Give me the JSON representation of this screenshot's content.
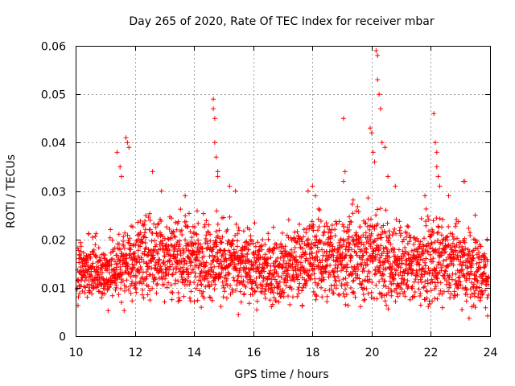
{
  "chart_data": {
    "type": "scatter",
    "title": "Day 265 of 2020, Rate Of TEC Index for receiver mbar",
    "xlabel": "GPS time / hours",
    "ylabel": "ROTI / TECUs",
    "xlim": [
      10,
      24
    ],
    "ylim": [
      0,
      0.06
    ],
    "grid": true,
    "x_ticks": [
      10,
      12,
      14,
      16,
      18,
      20,
      22,
      24
    ],
    "x_tick_labels": [
      "10",
      "12",
      "14",
      "16",
      "18",
      "20",
      "22",
      "24"
    ],
    "y_ticks": [
      0,
      0.01,
      0.02,
      0.03,
      0.04,
      0.05,
      0.06
    ],
    "y_tick_labels": [
      "0",
      "0.01",
      "0.02",
      "0.03",
      "0.04",
      "0.05",
      "0.06"
    ],
    "marker": "+",
    "color": "#ff0000",
    "sampling": "approximate; dense scatter summarised as hour-binned baseline plus visible spikes",
    "baseline": {
      "hours": [
        10,
        11,
        12,
        13,
        14,
        15,
        16,
        17,
        18,
        19,
        20,
        21,
        22,
        23,
        24
      ],
      "low": [
        0.006,
        0.005,
        0.006,
        0.006,
        0.006,
        0.005,
        0.005,
        0.005,
        0.006,
        0.005,
        0.004,
        0.004,
        0.005,
        0.004,
        0.004
      ],
      "high": [
        0.022,
        0.021,
        0.026,
        0.028,
        0.027,
        0.026,
        0.023,
        0.023,
        0.027,
        0.028,
        0.03,
        0.026,
        0.026,
        0.025,
        0.021
      ]
    },
    "spikes": [
      {
        "x": 11.4,
        "y": 0.038
      },
      {
        "x": 11.5,
        "y": 0.035
      },
      {
        "x": 11.55,
        "y": 0.033
      },
      {
        "x": 11.7,
        "y": 0.041
      },
      {
        "x": 11.75,
        "y": 0.04
      },
      {
        "x": 11.8,
        "y": 0.039
      },
      {
        "x": 12.6,
        "y": 0.034
      },
      {
        "x": 12.9,
        "y": 0.03
      },
      {
        "x": 13.7,
        "y": 0.029
      },
      {
        "x": 14.65,
        "y": 0.049
      },
      {
        "x": 14.65,
        "y": 0.047
      },
      {
        "x": 14.7,
        "y": 0.045
      },
      {
        "x": 14.7,
        "y": 0.04
      },
      {
        "x": 14.75,
        "y": 0.037
      },
      {
        "x": 14.8,
        "y": 0.034
      },
      {
        "x": 14.8,
        "y": 0.033
      },
      {
        "x": 15.2,
        "y": 0.031
      },
      {
        "x": 15.4,
        "y": 0.03
      },
      {
        "x": 17.85,
        "y": 0.03
      },
      {
        "x": 18.0,
        "y": 0.031
      },
      {
        "x": 18.1,
        "y": 0.029
      },
      {
        "x": 19.05,
        "y": 0.045
      },
      {
        "x": 19.1,
        "y": 0.034
      },
      {
        "x": 19.05,
        "y": 0.032
      },
      {
        "x": 19.95,
        "y": 0.043
      },
      {
        "x": 20.0,
        "y": 0.042
      },
      {
        "x": 20.05,
        "y": 0.038
      },
      {
        "x": 20.1,
        "y": 0.036
      },
      {
        "x": 20.15,
        "y": 0.059
      },
      {
        "x": 20.2,
        "y": 0.058
      },
      {
        "x": 20.2,
        "y": 0.053
      },
      {
        "x": 20.25,
        "y": 0.05
      },
      {
        "x": 20.3,
        "y": 0.047
      },
      {
        "x": 20.35,
        "y": 0.04
      },
      {
        "x": 20.45,
        "y": 0.039
      },
      {
        "x": 20.55,
        "y": 0.033
      },
      {
        "x": 20.8,
        "y": 0.031
      },
      {
        "x": 21.8,
        "y": 0.029
      },
      {
        "x": 22.1,
        "y": 0.046
      },
      {
        "x": 22.15,
        "y": 0.04
      },
      {
        "x": 22.2,
        "y": 0.038
      },
      {
        "x": 22.2,
        "y": 0.035
      },
      {
        "x": 22.25,
        "y": 0.033
      },
      {
        "x": 22.3,
        "y": 0.031
      },
      {
        "x": 22.6,
        "y": 0.029
      },
      {
        "x": 23.1,
        "y": 0.032
      },
      {
        "x": 23.15,
        "y": 0.032
      },
      {
        "x": 23.5,
        "y": 0.025
      },
      {
        "x": 23.9,
        "y": 0.02
      }
    ]
  }
}
